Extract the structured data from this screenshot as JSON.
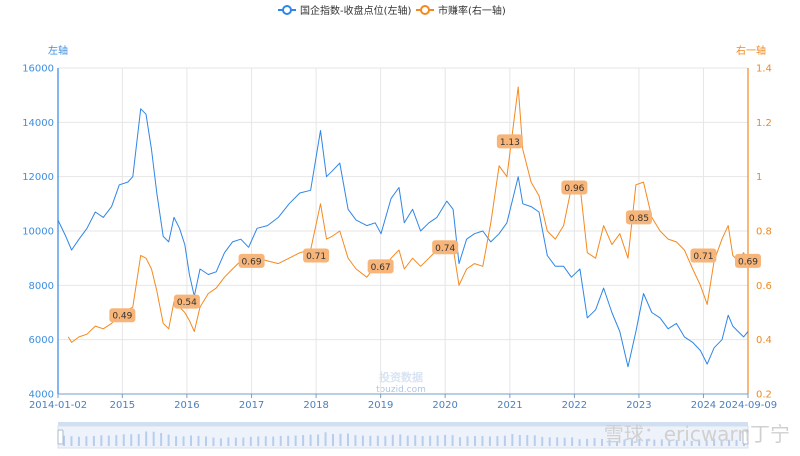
{
  "legend": {
    "series1": "国企指数-收盘点位(左轴)",
    "series2": "市赚率(右一轴)"
  },
  "axes": {
    "left_name": "左轴",
    "right_name": "右一轴"
  },
  "watermark": {
    "line1": "投资数据",
    "line2": "touzid.com"
  },
  "footer_watermark": "雪球：ericwarn丁宁",
  "colors": {
    "series1": "#2f86e6",
    "series2": "#f5891f",
    "label_bg": "#f7b57a",
    "grid": "#e6e6e6"
  },
  "chart_data": {
    "type": "line",
    "x_ticks": [
      "2014-01-02",
      "2015",
      "2016",
      "2017",
      "2018",
      "2019",
      "2020",
      "2021",
      "2022",
      "2023",
      "2024",
      "2024-09-09"
    ],
    "x_range": [
      "2014-01-02",
      "2024-09-09"
    ],
    "y_left": {
      "min": 4000,
      "max": 16000,
      "ticks": [
        4000,
        6000,
        8000,
        10000,
        12000,
        14000,
        16000
      ]
    },
    "y_right": {
      "min": 0.2,
      "max": 1.4,
      "ticks": [
        0.2,
        0.4,
        0.6,
        0.8,
        1,
        1.2,
        1.4
      ]
    },
    "grid": true,
    "legend_position": "top-center",
    "series": [
      {
        "name": "国企指数-收盘点位(左轴)",
        "axis": "left",
        "points": [
          [
            "2014-01-02",
            10400
          ],
          [
            "2014-02-15",
            9800
          ],
          [
            "2014-03-20",
            9300
          ],
          [
            "2014-05-01",
            9700
          ],
          [
            "2014-06-15",
            10100
          ],
          [
            "2014-08-01",
            10700
          ],
          [
            "2014-09-15",
            10500
          ],
          [
            "2014-11-01",
            10900
          ],
          [
            "2014-12-15",
            11700
          ],
          [
            "2015-02-01",
            11800
          ],
          [
            "2015-03-01",
            12000
          ],
          [
            "2015-04-15",
            14500
          ],
          [
            "2015-05-15",
            14300
          ],
          [
            "2015-06-15",
            13000
          ],
          [
            "2015-07-15",
            11400
          ],
          [
            "2015-08-20",
            9800
          ],
          [
            "2015-09-20",
            9600
          ],
          [
            "2015-10-20",
            10500
          ],
          [
            "2015-11-20",
            10100
          ],
          [
            "2015-12-20",
            9500
          ],
          [
            "2016-01-15",
            8400
          ],
          [
            "2016-02-12",
            7600
          ],
          [
            "2016-03-15",
            8600
          ],
          [
            "2016-05-01",
            8400
          ],
          [
            "2016-06-15",
            8500
          ],
          [
            "2016-08-01",
            9200
          ],
          [
            "2016-09-15",
            9600
          ],
          [
            "2016-11-01",
            9700
          ],
          [
            "2016-12-15",
            9400
          ],
          [
            "2017-02-01",
            10100
          ],
          [
            "2017-04-01",
            10200
          ],
          [
            "2017-06-01",
            10500
          ],
          [
            "2017-08-01",
            11000
          ],
          [
            "2017-10-01",
            11400
          ],
          [
            "2017-12-01",
            11500
          ],
          [
            "2018-01-26",
            13700
          ],
          [
            "2018-03-01",
            12000
          ],
          [
            "2018-04-01",
            12200
          ],
          [
            "2018-05-15",
            12500
          ],
          [
            "2018-07-01",
            10800
          ],
          [
            "2018-08-15",
            10400
          ],
          [
            "2018-10-15",
            10200
          ],
          [
            "2018-12-01",
            10300
          ],
          [
            "2019-01-03",
            9900
          ],
          [
            "2019-03-01",
            11200
          ],
          [
            "2019-04-15",
            11600
          ],
          [
            "2019-05-15",
            10300
          ],
          [
            "2019-07-01",
            10800
          ],
          [
            "2019-08-15",
            10000
          ],
          [
            "2019-10-01",
            10300
          ],
          [
            "2019-11-15",
            10500
          ],
          [
            "2020-01-10",
            11100
          ],
          [
            "2020-02-15",
            10800
          ],
          [
            "2020-03-19",
            8800
          ],
          [
            "2020-05-01",
            9700
          ],
          [
            "2020-06-15",
            9900
          ],
          [
            "2020-08-01",
            10000
          ],
          [
            "2020-09-15",
            9600
          ],
          [
            "2020-11-01",
            9900
          ],
          [
            "2020-12-15",
            10300
          ],
          [
            "2021-02-17",
            12000
          ],
          [
            "2021-03-15",
            11000
          ],
          [
            "2021-05-01",
            10900
          ],
          [
            "2021-06-15",
            10700
          ],
          [
            "2021-08-01",
            9100
          ],
          [
            "2021-09-15",
            8700
          ],
          [
            "2021-11-01",
            8700
          ],
          [
            "2021-12-15",
            8300
          ],
          [
            "2022-02-01",
            8600
          ],
          [
            "2022-03-15",
            6800
          ],
          [
            "2022-05-01",
            7100
          ],
          [
            "2022-06-15",
            7900
          ],
          [
            "2022-08-01",
            7000
          ],
          [
            "2022-09-15",
            6300
          ],
          [
            "2022-10-31",
            5000
          ],
          [
            "2022-12-15",
            6300
          ],
          [
            "2023-01-27",
            7700
          ],
          [
            "2023-03-15",
            7000
          ],
          [
            "2023-05-01",
            6800
          ],
          [
            "2023-06-15",
            6400
          ],
          [
            "2023-08-01",
            6600
          ],
          [
            "2023-09-15",
            6100
          ],
          [
            "2023-11-01",
            5900
          ],
          [
            "2023-12-15",
            5600
          ],
          [
            "2024-01-22",
            5100
          ],
          [
            "2024-03-01",
            5700
          ],
          [
            "2024-04-15",
            6000
          ],
          [
            "2024-05-20",
            6900
          ],
          [
            "2024-06-15",
            6500
          ],
          [
            "2024-07-15",
            6300
          ],
          [
            "2024-08-15",
            6100
          ],
          [
            "2024-09-09",
            6300
          ]
        ]
      },
      {
        "name": "市赚率(右一轴)",
        "axis": "right",
        "points": [
          [
            "2014-03-01",
            0.41
          ],
          [
            "2014-03-20",
            0.39
          ],
          [
            "2014-05-01",
            0.41
          ],
          [
            "2014-06-15",
            0.42
          ],
          [
            "2014-08-01",
            0.45
          ],
          [
            "2014-09-15",
            0.44
          ],
          [
            "2014-11-01",
            0.46
          ],
          [
            "2014-12-15",
            0.49
          ],
          [
            "2015-02-01",
            0.51
          ],
          [
            "2015-03-01",
            0.52
          ],
          [
            "2015-04-15",
            0.71
          ],
          [
            "2015-05-15",
            0.7
          ],
          [
            "2015-06-15",
            0.66
          ],
          [
            "2015-07-15",
            0.58
          ],
          [
            "2015-08-20",
            0.46
          ],
          [
            "2015-09-20",
            0.44
          ],
          [
            "2015-10-20",
            0.54
          ],
          [
            "2015-11-20",
            0.52
          ],
          [
            "2015-12-20",
            0.5
          ],
          [
            "2016-01-15",
            0.47
          ],
          [
            "2016-02-12",
            0.43
          ],
          [
            "2016-03-15",
            0.52
          ],
          [
            "2016-05-01",
            0.57
          ],
          [
            "2016-06-15",
            0.59
          ],
          [
            "2016-08-01",
            0.63
          ],
          [
            "2016-09-15",
            0.66
          ],
          [
            "2016-11-01",
            0.69
          ],
          [
            "2016-12-15",
            0.68
          ],
          [
            "2017-02-01",
            0.7
          ],
          [
            "2017-04-01",
            0.69
          ],
          [
            "2017-06-01",
            0.68
          ],
          [
            "2017-08-01",
            0.7
          ],
          [
            "2017-10-01",
            0.72
          ],
          [
            "2017-12-01",
            0.73
          ],
          [
            "2018-01-26",
            0.9
          ],
          [
            "2018-03-01",
            0.77
          ],
          [
            "2018-04-01",
            0.78
          ],
          [
            "2018-05-15",
            0.8
          ],
          [
            "2018-07-01",
            0.7
          ],
          [
            "2018-08-15",
            0.66
          ],
          [
            "2018-10-15",
            0.63
          ],
          [
            "2018-12-01",
            0.67
          ],
          [
            "2019-01-03",
            0.65
          ],
          [
            "2019-03-01",
            0.7
          ],
          [
            "2019-04-15",
            0.73
          ],
          [
            "2019-05-15",
            0.66
          ],
          [
            "2019-07-01",
            0.7
          ],
          [
            "2019-08-15",
            0.67
          ],
          [
            "2019-10-01",
            0.7
          ],
          [
            "2019-11-15",
            0.73
          ],
          [
            "2020-01-10",
            0.75
          ],
          [
            "2020-02-15",
            0.74
          ],
          [
            "2020-03-19",
            0.6
          ],
          [
            "2020-05-01",
            0.66
          ],
          [
            "2020-06-15",
            0.68
          ],
          [
            "2020-08-01",
            0.67
          ],
          [
            "2020-09-15",
            0.83
          ],
          [
            "2020-11-01",
            1.04
          ],
          [
            "2020-12-15",
            1.0
          ],
          [
            "2021-02-17",
            1.33
          ],
          [
            "2021-03-15",
            1.1
          ],
          [
            "2021-05-01",
            0.98
          ],
          [
            "2021-06-15",
            0.93
          ],
          [
            "2021-08-01",
            0.8
          ],
          [
            "2021-09-15",
            0.77
          ],
          [
            "2021-11-01",
            0.82
          ],
          [
            "2021-12-15",
            0.96
          ],
          [
            "2022-02-01",
            0.97
          ],
          [
            "2022-03-15",
            0.72
          ],
          [
            "2022-05-01",
            0.7
          ],
          [
            "2022-06-15",
            0.82
          ],
          [
            "2022-08-01",
            0.75
          ],
          [
            "2022-09-15",
            0.79
          ],
          [
            "2022-10-31",
            0.7
          ],
          [
            "2022-12-15",
            0.97
          ],
          [
            "2023-01-27",
            0.98
          ],
          [
            "2023-03-15",
            0.85
          ],
          [
            "2023-05-01",
            0.8
          ],
          [
            "2023-06-15",
            0.77
          ],
          [
            "2023-08-01",
            0.76
          ],
          [
            "2023-09-15",
            0.73
          ],
          [
            "2023-11-01",
            0.66
          ],
          [
            "2023-12-15",
            0.6
          ],
          [
            "2024-01-22",
            0.53
          ],
          [
            "2024-03-01",
            0.69
          ],
          [
            "2024-04-15",
            0.77
          ],
          [
            "2024-05-20",
            0.82
          ],
          [
            "2024-06-15",
            0.71
          ],
          [
            "2024-07-15",
            0.69
          ],
          [
            "2024-08-15",
            0.72
          ],
          [
            "2024-09-09",
            0.69
          ]
        ]
      }
    ],
    "annotations": [
      {
        "x": "2015-01-01",
        "y": 0.49,
        "label": "0.49"
      },
      {
        "x": "2016-01-01",
        "y": 0.54,
        "label": "0.54"
      },
      {
        "x": "2017-01-01",
        "y": 0.69,
        "label": "0.69"
      },
      {
        "x": "2018-01-01",
        "y": 0.71,
        "label": "0.71"
      },
      {
        "x": "2019-01-01",
        "y": 0.67,
        "label": "0.67"
      },
      {
        "x": "2020-01-01",
        "y": 0.74,
        "label": "0.74"
      },
      {
        "x": "2021-01-01",
        "y": 1.13,
        "label": "1.13"
      },
      {
        "x": "2022-01-01",
        "y": 0.96,
        "label": "0.96"
      },
      {
        "x": "2023-01-01",
        "y": 0.85,
        "label": "0.85"
      },
      {
        "x": "2024-01-01",
        "y": 0.71,
        "label": "0.71"
      },
      {
        "x": "2024-09-09",
        "y": 0.69,
        "label": "0.69"
      }
    ]
  }
}
